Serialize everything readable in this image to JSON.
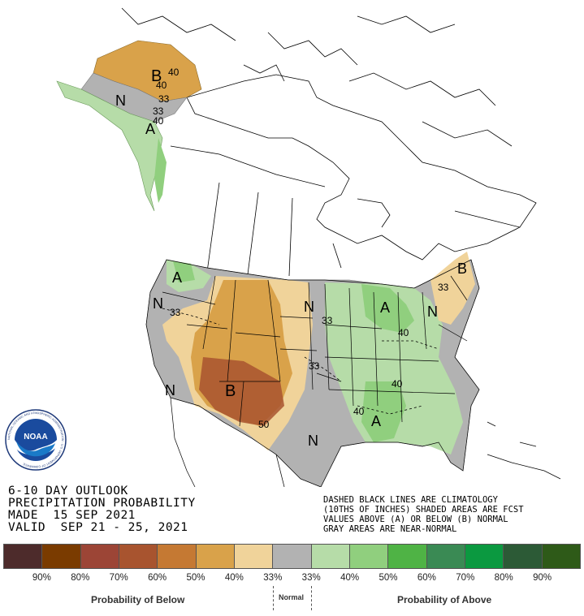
{
  "title": {
    "line1": "6-10 DAY OUTLOOK",
    "line2": "PRECIPITATION PROBABILITY",
    "line3": "MADE  15 SEP 2021",
    "line4": "VALID  SEP 21 - 25, 2021"
  },
  "notes": {
    "line1": "DASHED BLACK LINES ARE CLIMATOLOGY",
    "line2": "(10THS OF INCHES) SHADED AREAS ARE FCST",
    "line3": "VALUES ABOVE (A) OR BELOW (B) NORMAL",
    "line4": "GRAY AREAS ARE NEAR-NORMAL"
  },
  "logo": {
    "text": "NOAA",
    "ring_text": "NATIONAL OCEANIC AND ATMOSPHERIC ADMINISTRATION · U.S. DEPARTMENT OF COMMERCE"
  },
  "map_labels": {
    "alaska_b": "B",
    "alaska_40a": "40",
    "alaska_40b": "40",
    "alaska_33a": "33",
    "alaska_33b": "33",
    "alaska_n": "N",
    "alaska_a": "A",
    "alaska_40c": "40",
    "nw_a": "A",
    "w_n": "N",
    "w_33": "33",
    "sw_n": "N",
    "sw_b": "B",
    "sw_50": "50",
    "plains_n": "N",
    "plains_33a": "33",
    "plains_33b": "33",
    "texas_n": "N",
    "midwest_a": "A",
    "midwest_40": "40",
    "se_40a": "40",
    "se_40b": "40",
    "se_a": "A",
    "east_n": "N",
    "east_33": "33",
    "ne_b": "B"
  },
  "legend": {
    "colors": [
      "#4d2b2b",
      "#7a3b00",
      "#9c4536",
      "#a8542f",
      "#c57933",
      "#d9a24a",
      "#f0d39a",
      "#b2b2b2",
      "#b6dca8",
      "#90cf7e",
      "#4fb345",
      "#3a8a54",
      "#0b9940",
      "#2c5a36",
      "#2e5a18"
    ],
    "labels": [
      "90%",
      "80%",
      "70%",
      "60%",
      "50%",
      "40%",
      "33%",
      "33%",
      "40%",
      "50%",
      "60%",
      "70%",
      "80%",
      "90%"
    ],
    "below_caption": "Probability of Below",
    "normal_caption": "Normal",
    "above_caption": "Probability of Above"
  }
}
